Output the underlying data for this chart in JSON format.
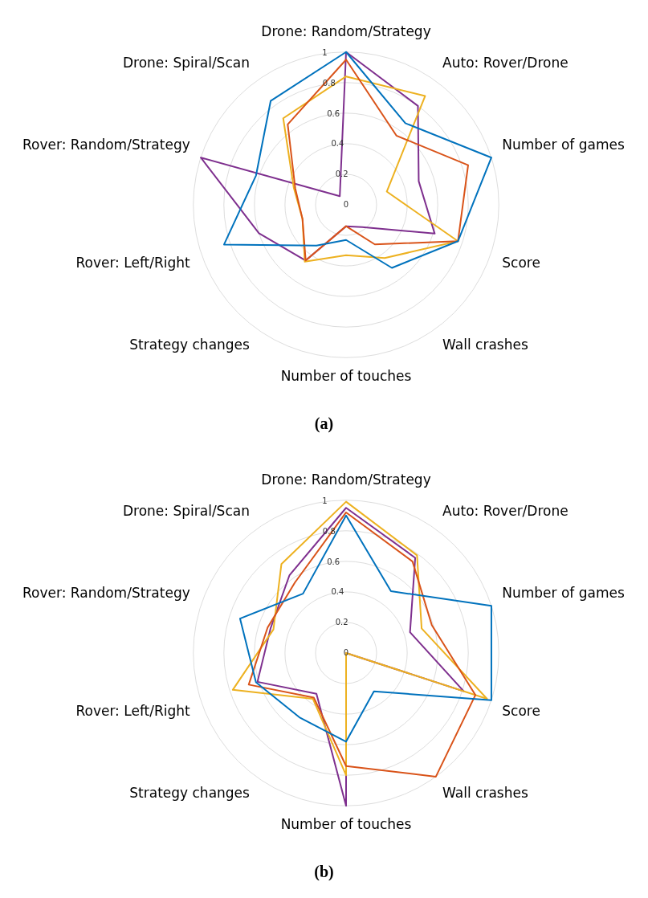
{
  "chart_data": [
    {
      "type": "radar",
      "categories": [
        "Drone: Random/Strategy",
        "Auto: Rover/Drone",
        "Number of games",
        "Score",
        "Wall crashes",
        "Number of touches",
        "Strategy changes",
        "Rover: Left/Right",
        "Rover: Random/Strategy",
        "Drone: Spiral/Scan"
      ],
      "series": [
        {
          "color": "#0072bd",
          "values": [
            1.0,
            0.66,
            1.0,
            0.77,
            0.51,
            0.23,
            0.33,
            0.84,
            0.62,
            0.84
          ]
        },
        {
          "color": "#d95319",
          "values": [
            0.95,
            0.56,
            0.84,
            0.77,
            0.32,
            0.14,
            0.45,
            0.3,
            0.35,
            0.65
          ]
        },
        {
          "color": "#edb120",
          "values": [
            0.84,
            0.88,
            0.28,
            0.77,
            0.43,
            0.33,
            0.46,
            0.3,
            0.36,
            0.7
          ]
        },
        {
          "color": "#7e2f8e",
          "values": [
            1.0,
            0.8,
            0.5,
            0.61,
            0.18,
            0.14,
            0.45,
            0.6,
            1.0,
            0.07
          ]
        }
      ],
      "ylim": [
        0,
        1
      ],
      "yticks": [
        0,
        0.2,
        0.4,
        0.6,
        0.8,
        1
      ],
      "grid": true,
      "marker": "none",
      "annotations": [
        "(a)"
      ]
    },
    {
      "type": "radar",
      "categories": [
        "Drone: Random/Strategy",
        "Auto: Rover/Drone",
        "Number of games",
        "Score",
        "Wall crashes",
        "Number of touches",
        "Strategy changes",
        "Rover: Left/Right",
        "Rover: Random/Strategy",
        "Drone: Spiral/Scan"
      ],
      "series": [
        {
          "color": "#0072bd",
          "values": [
            0.9,
            0.5,
            1.0,
            1.0,
            0.31,
            0.58,
            0.52,
            0.62,
            0.73,
            0.48
          ]
        },
        {
          "color": "#d95319",
          "values": [
            0.92,
            0.74,
            0.59,
            0.89,
            1.0,
            0.74,
            0.36,
            0.67,
            0.54,
            0.57
          ]
        },
        {
          "color": "#edb120",
          "values": [
            0.99,
            0.79,
            0.52,
            0.97,
            0,
            0.8,
            0.37,
            0.78,
            0.5,
            0.72
          ]
        },
        {
          "color": "#7e2f8e",
          "values": [
            0.95,
            0.77,
            0.44,
            0.81,
            0,
            1.0,
            0.33,
            0.61,
            0.52,
            0.63
          ]
        }
      ],
      "ylim": [
        0,
        1
      ],
      "yticks": [
        0,
        0.2,
        0.4,
        0.6,
        0.8,
        1
      ],
      "grid": true,
      "marker": "none",
      "annotations": [
        "(b)"
      ]
    }
  ]
}
